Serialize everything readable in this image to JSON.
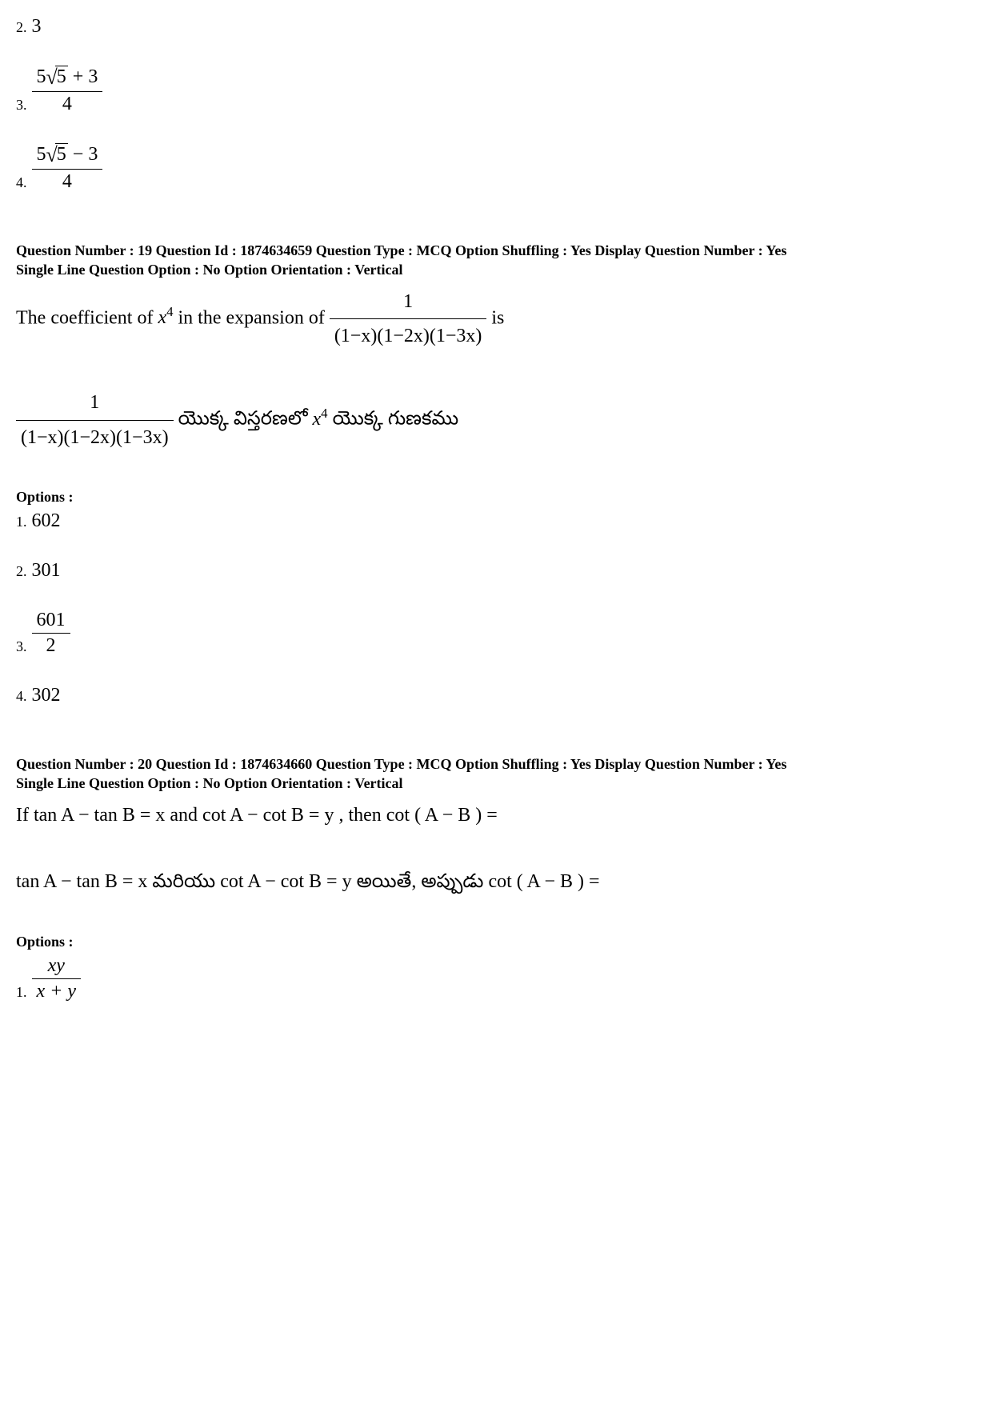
{
  "prev_options": {
    "opt2": {
      "num": "2.",
      "value": "3"
    },
    "opt3": {
      "num": "3.",
      "frac_num_a": "5",
      "frac_num_sqrt": "5",
      "frac_num_op": " + 3",
      "frac_den": "4"
    },
    "opt4": {
      "num": "4.",
      "frac_num_a": "5",
      "frac_num_sqrt": "5",
      "frac_num_op": " − 3",
      "frac_den": "4"
    }
  },
  "q19": {
    "meta_line1": "Question Number : 19  Question Id : 1874634659  Question Type : MCQ  Option Shuffling : Yes  Display Question Number : Yes",
    "meta_line2": "Single Line Question Option : No  Option Orientation : Vertical",
    "en_pre": "The coefficient of ",
    "en_var": "x",
    "en_sup": "4",
    "en_mid": " in the expansion of ",
    "frac_num": "1",
    "frac_den": "(1−x)(1−2x)(1−3x)",
    "en_post": " is",
    "te_mid": " యొక్క విస్తరణలో ",
    "te_var": "x",
    "te_sup": "4",
    "te_post": " యొక్క గుణకము",
    "options_label": "Options :",
    "opt1": {
      "num": "1.",
      "value": "602"
    },
    "opt2": {
      "num": "2.",
      "value": "301"
    },
    "opt3": {
      "num": "3.",
      "frac_num": "601",
      "frac_den": "2"
    },
    "opt4": {
      "num": "4.",
      "value": "302"
    }
  },
  "q20": {
    "meta_line1": "Question Number : 20  Question Id : 1874634660  Question Type : MCQ  Option Shuffling : Yes  Display Question Number : Yes",
    "meta_line2": "Single Line Question Option : No  Option Orientation : Vertical",
    "en_text": "If tan A − tan B = x  and  cot A − cot B = y , then  cot ( A − B ) =",
    "te_text": "tan A − tan B = x  మరియు  cot A − cot B = y  అయితే, అప్పుడు  cot ( A − B ) =",
    "options_label": "Options :",
    "opt1": {
      "num": "1.",
      "frac_num": "xy",
      "frac_den": "x + y"
    }
  }
}
